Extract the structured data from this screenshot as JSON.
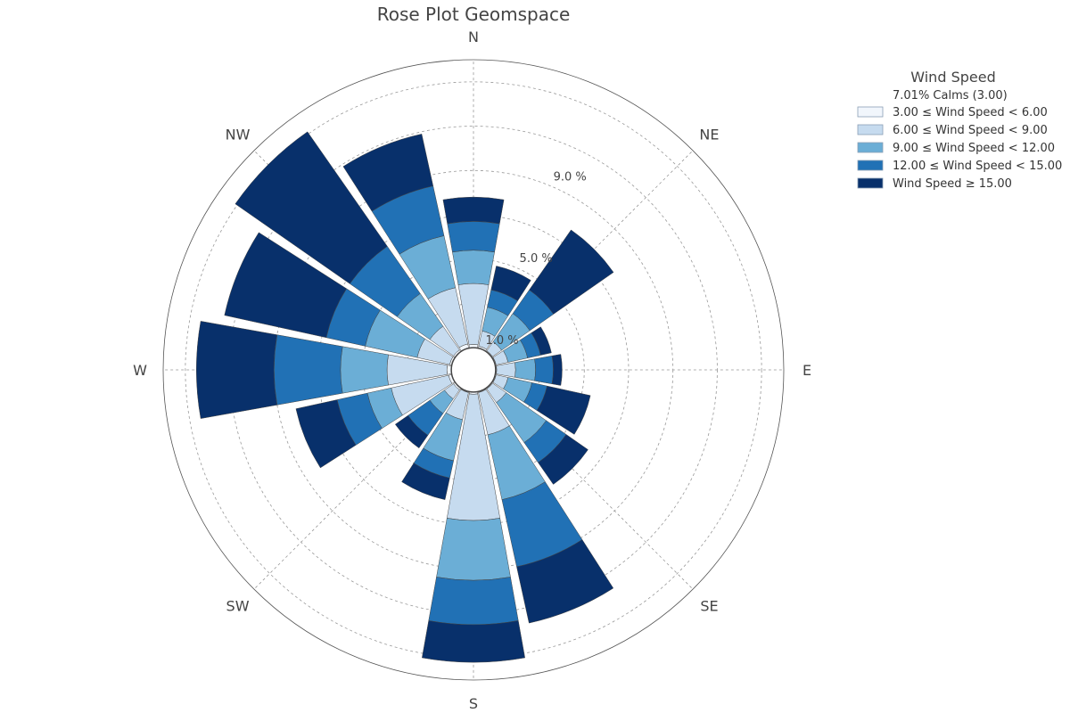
{
  "chart_data": {
    "type": "rose",
    "title": "Rose Plot Geomspace",
    "directions": [
      "N",
      "NNE",
      "NE",
      "ENE",
      "E",
      "ESE",
      "SE",
      "SSE",
      "S",
      "SSW",
      "SW",
      "WSW",
      "W",
      "WNW",
      "NW",
      "NNW"
    ],
    "direction_labels": [
      "N",
      "NE",
      "E",
      "SE",
      "S",
      "SW",
      "W",
      "NW"
    ],
    "radial_ticks": [
      1.0,
      5.0,
      9.0
    ],
    "radial_tick_labels": [
      "1.0 %",
      "5.0 %",
      "9.0 %"
    ],
    "grid_rings": [
      1,
      3,
      5,
      7,
      9,
      11,
      13
    ],
    "rmax": 14,
    "calm": {
      "label": "7.01% Calms (3.00)",
      "radius": 1.0
    },
    "legend": {
      "title": "Wind Speed",
      "placement": "right",
      "entries": [
        "3.00 ≤ Wind Speed < 6.00",
        "6.00 ≤ Wind Speed < 9.00",
        "9.00 ≤ Wind Speed < 12.00",
        "12.00 ≤ Wind Speed < 15.00",
        "Wind Speed ≥ 15.00"
      ]
    },
    "colors": [
      "#f1f6fc",
      "#c6dbef",
      "#6baed6",
      "#2171b5",
      "#08306b"
    ],
    "series": [
      {
        "name": "3.00 ≤ Wind Speed < 6.00",
        "values": [
          1.15,
          1.1,
          1.05,
          1.05,
          1.05,
          1.05,
          1.05,
          1.05,
          1.1,
          1.05,
          1.1,
          1.15,
          1.2,
          1.1,
          1.1,
          1.2
        ]
      },
      {
        "name": "6.00 ≤ Wind Speed < 9.00",
        "values": [
          3.9,
          1.8,
          1.55,
          1.6,
          1.9,
          1.6,
          1.8,
          3.0,
          6.8,
          2.3,
          1.6,
          3.8,
          3.9,
          2.6,
          2.4,
          3.8
        ]
      },
      {
        "name": "9.00 ≤ Wind Speed < 12.00",
        "values": [
          5.4,
          2.9,
          3.1,
          2.5,
          2.8,
          2.7,
          4.0,
          6.0,
          9.5,
          4.2,
          2.4,
          4.9,
          6.0,
          5.0,
          4.2,
          6.2
        ]
      },
      {
        "name": "12.00 ≤ Wind Speed < 15.00",
        "values": [
          6.7,
          3.7,
          4.4,
          3.1,
          3.6,
          3.4,
          5.1,
          9.1,
          11.5,
          5.0,
          3.6,
          6.3,
          9.0,
          6.8,
          6.8,
          8.5
        ]
      },
      {
        "name": "Wind Speed ≥ 15.00",
        "values": [
          7.8,
          4.8,
          7.7,
          3.6,
          4.0,
          5.4,
          6.3,
          11.7,
          13.2,
          6.0,
          4.3,
          8.2,
          12.5,
          11.5,
          13.1,
          10.9
        ]
      }
    ]
  }
}
